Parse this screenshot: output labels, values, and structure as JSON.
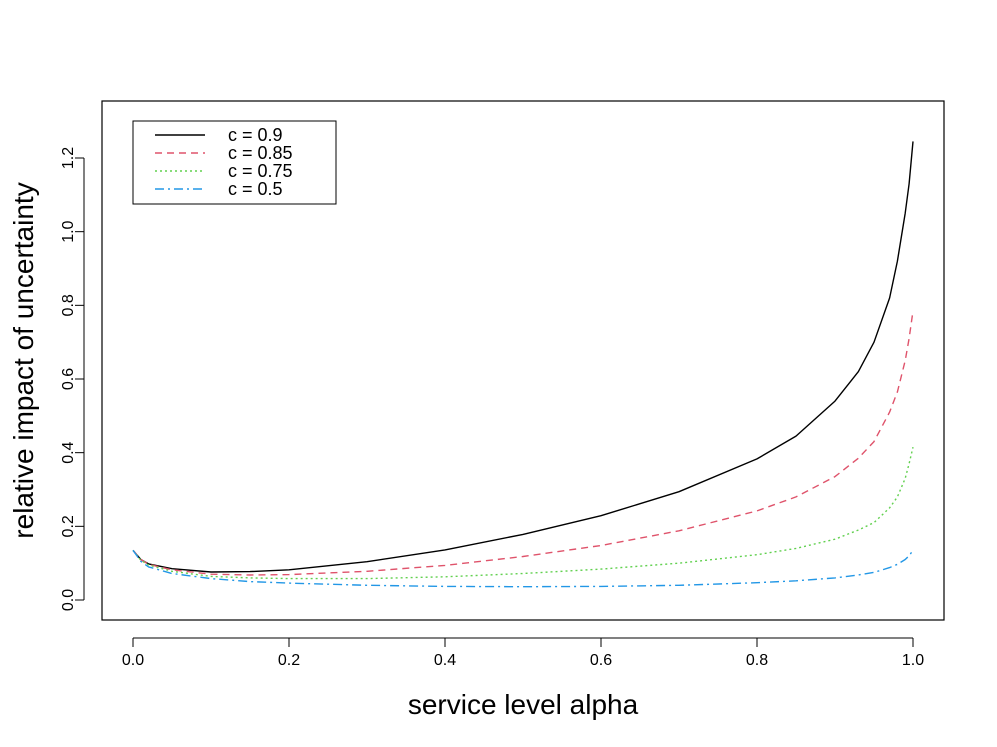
{
  "chart_data": {
    "type": "line",
    "title": "",
    "xlabel": "service level alpha",
    "ylabel": "relative impact of uncertainty",
    "xlim": [
      0.0,
      1.0
    ],
    "ylim": [
      0.0,
      1.3
    ],
    "grid": false,
    "legend_position": "top-left",
    "x_ticks": [
      {
        "value": 0.0,
        "label": "0.0"
      },
      {
        "value": 0.2,
        "label": "0.2"
      },
      {
        "value": 0.4,
        "label": "0.4"
      },
      {
        "value": 0.6,
        "label": "0.6"
      },
      {
        "value": 0.8,
        "label": "0.8"
      },
      {
        "value": 1.0,
        "label": "1.0"
      }
    ],
    "y_ticks": [
      {
        "value": 0.0,
        "label": "0.0"
      },
      {
        "value": 0.2,
        "label": "0.2"
      },
      {
        "value": 0.4,
        "label": "0.4"
      },
      {
        "value": 0.6,
        "label": "0.6"
      },
      {
        "value": 0.8,
        "label": "0.8"
      },
      {
        "value": 1.0,
        "label": "1.0"
      },
      {
        "value": 1.2,
        "label": "1.2"
      }
    ],
    "series": [
      {
        "name": "c = 0.9",
        "color": "#000000",
        "dash": "",
        "x": [
          0.0,
          0.01,
          0.02,
          0.05,
          0.1,
          0.15,
          0.2,
          0.3,
          0.4,
          0.5,
          0.6,
          0.7,
          0.8,
          0.85,
          0.9,
          0.93,
          0.95,
          0.97,
          0.98,
          0.99,
          0.995,
          1.0
        ],
        "y": [
          0.135,
          0.11,
          0.098,
          0.085,
          0.076,
          0.077,
          0.082,
          0.104,
          0.136,
          0.178,
          0.229,
          0.294,
          0.383,
          0.445,
          0.54,
          0.62,
          0.7,
          0.82,
          0.92,
          1.05,
          1.13,
          1.245
        ]
      },
      {
        "name": "c = 0.85",
        "color": "#DF536B",
        "dash": "7,5",
        "x": [
          0.0,
          0.01,
          0.02,
          0.05,
          0.1,
          0.15,
          0.2,
          0.3,
          0.4,
          0.5,
          0.6,
          0.7,
          0.8,
          0.85,
          0.9,
          0.93,
          0.95,
          0.97,
          0.98,
          0.99,
          0.995,
          1.0
        ],
        "y": [
          0.135,
          0.11,
          0.097,
          0.082,
          0.07,
          0.068,
          0.069,
          0.078,
          0.094,
          0.118,
          0.148,
          0.188,
          0.242,
          0.28,
          0.335,
          0.385,
          0.43,
          0.51,
          0.565,
          0.65,
          0.71,
          0.785
        ]
      },
      {
        "name": "c = 0.75",
        "color": "#61D04F",
        "dash": "2,3",
        "x": [
          0.0,
          0.01,
          0.02,
          0.05,
          0.1,
          0.15,
          0.2,
          0.3,
          0.4,
          0.5,
          0.6,
          0.7,
          0.8,
          0.85,
          0.9,
          0.93,
          0.95,
          0.97,
          0.98,
          0.99,
          0.995,
          1.0
        ],
        "y": [
          0.135,
          0.108,
          0.095,
          0.078,
          0.064,
          0.06,
          0.058,
          0.058,
          0.063,
          0.072,
          0.084,
          0.1,
          0.123,
          0.14,
          0.165,
          0.19,
          0.21,
          0.25,
          0.28,
          0.33,
          0.37,
          0.415
        ]
      },
      {
        "name": "c = 0.5",
        "color": "#2297E6",
        "dash": "9,4,2,4",
        "x": [
          0.0,
          0.01,
          0.02,
          0.05,
          0.1,
          0.15,
          0.2,
          0.3,
          0.4,
          0.5,
          0.6,
          0.7,
          0.8,
          0.85,
          0.9,
          0.93,
          0.95,
          0.97,
          0.98,
          0.99,
          0.995,
          1.0
        ],
        "y": [
          0.135,
          0.105,
          0.09,
          0.072,
          0.058,
          0.05,
          0.046,
          0.04,
          0.037,
          0.036,
          0.037,
          0.04,
          0.047,
          0.052,
          0.06,
          0.068,
          0.075,
          0.088,
          0.097,
          0.11,
          0.12,
          0.135
        ]
      }
    ]
  }
}
